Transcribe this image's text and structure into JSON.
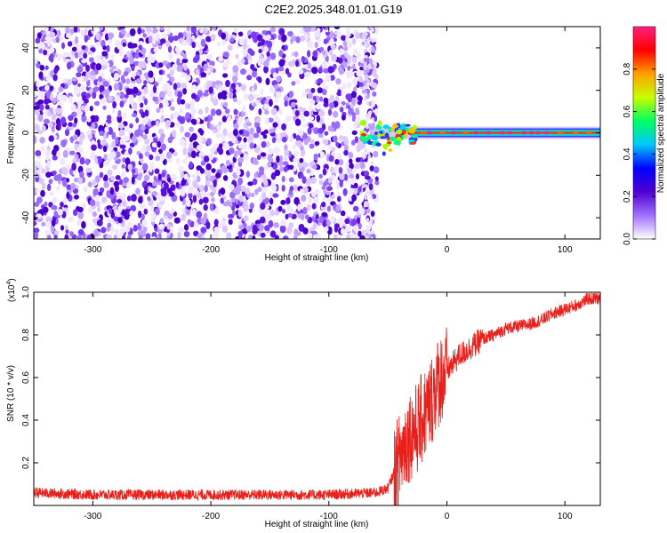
{
  "title": "C2E2.2025.348.01.01.G19",
  "chart_data": [
    {
      "type": "heatmap",
      "title": "C2E2.2025.348.01.01.G19",
      "xlabel": "Height of straight line (km)",
      "ylabel": "Frequency (Hz)",
      "xlim": [
        -350,
        130
      ],
      "ylim": [
        -50,
        50
      ],
      "x_ticks": [
        "-300",
        "-200",
        "-100",
        "0",
        "100"
      ],
      "y_ticks": [
        "40",
        "20",
        "0",
        "-20",
        "-40"
      ],
      "colorbar": {
        "label": "Normalized spectral amplitude",
        "range": [
          0,
          1
        ],
        "ticks": [
          "0.0",
          "0.2",
          "0.4",
          "0.6",
          "0.8"
        ],
        "colors": [
          "#ffffff",
          "#a070ff",
          "#5000d0",
          "#0000ff",
          "#00c8ff",
          "#00ff60",
          "#c8ff00",
          "#ffa000",
          "#ff0000",
          "#ff2080"
        ]
      },
      "features": {
        "noise_region_x": [
          -350,
          -65
        ],
        "signal_line_x": [
          -70,
          130
        ],
        "signal_line_frequency": 0
      },
      "grid": false,
      "legend": "none"
    },
    {
      "type": "line",
      "xlabel": "Height of straight line (km)",
      "ylabel": "SNR (10 * v/v)",
      "y_multiplier": "(x10",
      "y_multiplier_exp": "4",
      "xlim": [
        -350,
        130
      ],
      "ylim": [
        0,
        1.0
      ],
      "x_ticks": [
        "-300",
        "-200",
        "-100",
        "0",
        "100"
      ],
      "y_ticks": [
        "1.0",
        "0.8",
        "0.6",
        "0.4",
        "0.2"
      ],
      "color": "#e8201c",
      "x": [
        -350,
        -300,
        -200,
        -100,
        -60,
        -50,
        -45,
        -40,
        -35,
        -30,
        -25,
        -20,
        -15,
        -10,
        -5,
        0,
        10,
        20,
        30,
        40,
        50,
        60,
        70,
        80,
        90,
        100,
        110,
        120,
        130
      ],
      "y": [
        0.06,
        0.05,
        0.05,
        0.05,
        0.06,
        0.08,
        0.15,
        0.22,
        0.3,
        0.34,
        0.36,
        0.42,
        0.46,
        0.55,
        0.6,
        0.63,
        0.7,
        0.74,
        0.78,
        0.8,
        0.83,
        0.84,
        0.85,
        0.87,
        0.9,
        0.92,
        0.94,
        0.97,
        0.97
      ],
      "grid": false,
      "legend": "none"
    }
  ]
}
